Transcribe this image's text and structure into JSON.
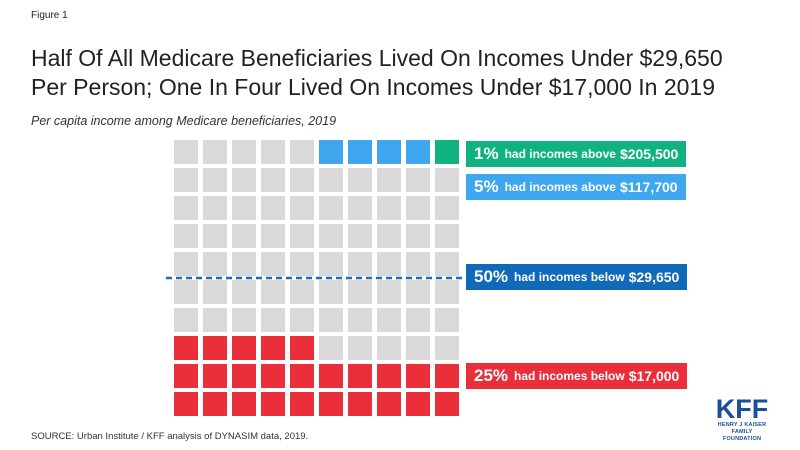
{
  "figure_label": "Figure 1",
  "title_line1": "Half Of All Medicare Beneficiaries Lived On Incomes Under $29,650",
  "title_line2": "Per Person; One In Four Lived On Incomes Under $17,000 In 2019",
  "subtitle": "Per capita income among Medicare beneficiaries, 2019",
  "source": "SOURCE: Urban Institute / KFF analysis of DYNASIM  data, 2019.",
  "logo": {
    "main": "KFF",
    "line1": "HENRY J KAISER",
    "line2": "FAMILY FOUNDATION"
  },
  "colors": {
    "gray": "#d9d9d9",
    "blue": "#3ea7ef",
    "green": "#10b380",
    "red": "#ea2e3a",
    "median_line": "#1a6eb4",
    "median_box": "#116ab8"
  },
  "chart_data": {
    "type": "waffle",
    "rows": 10,
    "cols": 10,
    "total_cells": 100,
    "segments": [
      {
        "key": "top1",
        "cells": 1,
        "color": "#10b380",
        "percent": "1%",
        "mid": "had incomes above",
        "amount": "$205,500"
      },
      {
        "key": "top5",
        "cells": 4,
        "color": "#3ea7ef",
        "percent": "5%",
        "mid": "had incomes above",
        "amount": "$117,700"
      },
      {
        "key": "middle",
        "cells": 70,
        "color": "#d9d9d9"
      },
      {
        "key": "bottom25",
        "cells": 25,
        "color": "#ea2e3a",
        "percent": "25%",
        "mid": "had incomes below",
        "amount": "$17,000"
      }
    ],
    "median": {
      "percent": "50%",
      "mid": "had incomes below",
      "amount": "$29,650"
    }
  }
}
